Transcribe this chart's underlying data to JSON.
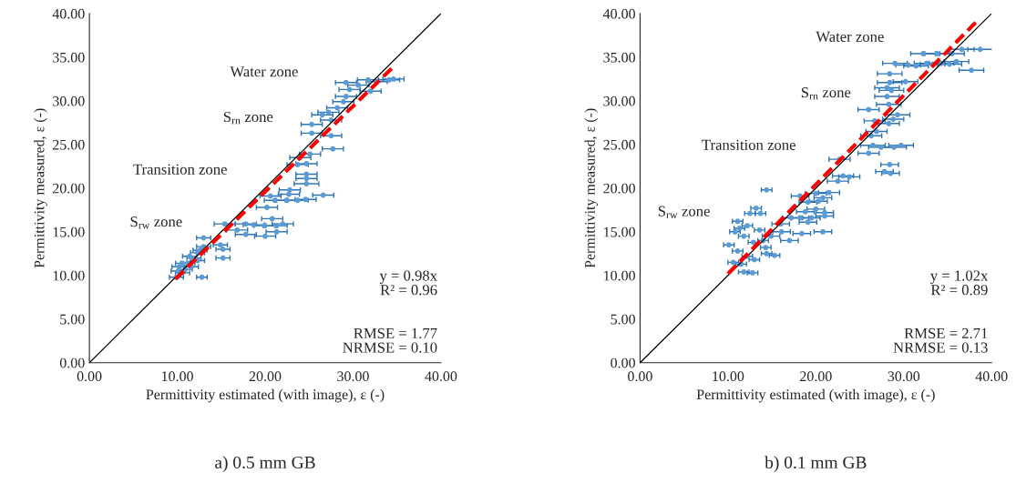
{
  "chart_data": [
    {
      "type": "scatter",
      "title": "a) 0.5 mm GB",
      "xlabel": "Permittivity estimated (with image), ε (-)",
      "ylabel": "Permittivity measured, ε (-)",
      "xlim": [
        0,
        40
      ],
      "ylim": [
        0,
        40
      ],
      "xticks": [
        {
          "value": 0,
          "label": "0.00"
        },
        {
          "value": 10,
          "label": "10.00"
        },
        {
          "value": 20,
          "label": "20.00"
        },
        {
          "value": 30,
          "label": "30.00"
        },
        {
          "value": 40,
          "label": "40.00"
        }
      ],
      "yticks": [
        {
          "value": 0,
          "label": "0.00"
        },
        {
          "value": 5,
          "label": "5.00"
        },
        {
          "value": 10,
          "label": "10.00"
        },
        {
          "value": 15,
          "label": "15.00"
        },
        {
          "value": 20,
          "label": "20.00"
        },
        {
          "value": 25,
          "label": "25.00"
        },
        {
          "value": 30,
          "label": "30.00"
        },
        {
          "value": 35,
          "label": "35.00"
        },
        {
          "value": 40,
          "label": "40.00"
        }
      ],
      "grid": false,
      "legend": false,
      "series": [
        {
          "marker": "circle",
          "color": "#5b9bd5",
          "x": [
            29.2,
            30.6,
            31.7,
            32.7,
            34.1,
            34.6,
            29.6,
            32.0,
            29.2,
            28.9,
            28.2,
            27.2,
            26.5,
            27.5,
            25.3,
            25.3,
            27.5,
            27.7,
            25.1,
            24.0,
            24.7,
            23.7,
            24.7,
            24.7,
            24.7,
            26.6,
            22.8,
            22.7,
            23.7,
            24.6,
            22.5,
            21.1,
            20.6,
            20.2,
            20.8,
            22.0,
            21.3,
            19.9,
            18.7,
            17.8,
            15.4,
            16.8,
            17.8,
            20.0,
            21.3,
            13.0,
            14.9,
            15.2,
            15.2,
            12.8,
            9.9,
            10.6,
            10.2,
            11.2,
            11.9,
            12.6,
            13.0,
            10.9,
            11.6,
            12.3,
            10.1,
            10.6,
            11.4,
            12.3
          ],
          "values": [
            32.1,
            31.8,
            32.4,
            32.2,
            32.4,
            32.5,
            31.3,
            31.1,
            30.5,
            29.9,
            29.2,
            28.7,
            28.4,
            27.8,
            27.3,
            26.3,
            26.0,
            24.5,
            23.9,
            23.5,
            22.8,
            22.7,
            21.6,
            21.1,
            20.5,
            19.2,
            19.8,
            19.3,
            18.6,
            18.7,
            18.6,
            18.6,
            19.1,
            17.8,
            16.5,
            15.9,
            15.7,
            15.7,
            15.8,
            15.9,
            15.9,
            15.2,
            14.7,
            14.5,
            15.0,
            14.3,
            13.5,
            13.0,
            12.0,
            9.8,
            9.8,
            10.3,
            11.0,
            11.4,
            12.0,
            12.9,
            13.3,
            10.7,
            11.0,
            11.7,
            10.5,
            11.4,
            12.2,
            12.6
          ],
          "xerrors": [
            1.2,
            1.2,
            1.2,
            1.2,
            1.2,
            1.2,
            1.2,
            1.2,
            1.2,
            1.2,
            1.2,
            1.2,
            1.2,
            1.2,
            1.2,
            1.2,
            1.2,
            1.2,
            1.2,
            1.2,
            1.2,
            1.2,
            1.2,
            1.2,
            1.4,
            1.2,
            1.2,
            1.2,
            1.2,
            1.2,
            1.2,
            1.2,
            1.2,
            1.2,
            1.2,
            1.2,
            1.2,
            1.2,
            1.2,
            1.2,
            1.2,
            1.2,
            1.2,
            1.2,
            1.2,
            0.8,
            0.8,
            0.8,
            0.8,
            0.6,
            0.8,
            0.8,
            0.8,
            0.8,
            0.8,
            0.8,
            0.8,
            0.8,
            0.8,
            0.8,
            0.8,
            0.8,
            0.8,
            0.8
          ]
        },
        {
          "type": "line",
          "color": "#000000",
          "line_style": "solid",
          "x": [
            0,
            40
          ],
          "values": [
            0,
            40
          ]
        },
        {
          "type": "line",
          "color": "#ff0000",
          "line_style": "dashed",
          "x": [
            9.8,
            34.8
          ],
          "values": [
            9.6,
            34.1
          ]
        }
      ],
      "annotations": [
        "Water zone",
        "S$_{rn}$ zone",
        "Transition zone",
        "S$_{rw}$ zone",
        "y = 0.98x\nR² = 0.96",
        "RMSE = 1.77\nNRMSE = 0.10"
      ]
    },
    {
      "type": "scatter",
      "title": "b) 0.1 mm GB",
      "xlabel": "Permittivity estimated (with image), ε (-)",
      "ylabel": "Permittivity measured, ε (-)",
      "xlim": [
        0,
        40
      ],
      "ylim": [
        0,
        40
      ],
      "xticks": [
        {
          "value": 0,
          "label": "0.00"
        },
        {
          "value": 10,
          "label": "10.00"
        },
        {
          "value": 20,
          "label": "20.00"
        },
        {
          "value": 30,
          "label": "30.00"
        },
        {
          "value": 40,
          "label": "40.00"
        }
      ],
      "yticks": [
        {
          "value": 0,
          "label": "0.00"
        },
        {
          "value": 5,
          "label": "5.00"
        },
        {
          "value": 10,
          "label": "10.00"
        },
        {
          "value": 15,
          "label": "15.00"
        },
        {
          "value": 20,
          "label": "20.00"
        },
        {
          "value": 25,
          "label": "25.00"
        },
        {
          "value": 30,
          "label": "30.00"
        },
        {
          "value": 35,
          "label": "35.00"
        },
        {
          "value": 40,
          "label": "40.00"
        }
      ],
      "grid": false,
      "legend": false,
      "series": [
        {
          "marker": "circle",
          "color": "#5b9bd5",
          "x": [
            38.7,
            37.7,
            36.6,
            35.5,
            33.8,
            32.2,
            29.0,
            30.5,
            31.4,
            32.6,
            33.3,
            34.3,
            35.2,
            36.0,
            28.4,
            28.4,
            30.2,
            28.1,
            28.6,
            28.1,
            28.3,
            26.0,
            29.3,
            28.8,
            28.3,
            26.7,
            26.9,
            26.3,
            26.5,
            29.7,
            28.9,
            27.4,
            26.0,
            22.7,
            28.4,
            27.8,
            28.5,
            23.1,
            23.8,
            22.5,
            21.5,
            20.0,
            18.2,
            20.8,
            20.3,
            19.1,
            20.0,
            21.0,
            18.8,
            21.0,
            19.5,
            18.2,
            17.2,
            19.1,
            16.0,
            20.8,
            18.4,
            17.0,
            16.1,
            14.9,
            14.4,
            13.2,
            12.5,
            13.7,
            11.1,
            12.2,
            10.8,
            11.8,
            12.9,
            14.0,
            10.1,
            14.3,
            11.1,
            12.2,
            13.0,
            14.4,
            15.3,
            10.6,
            11.5,
            11.8,
            12.8,
            13.6,
            11.3
          ],
          "values": [
            35.9,
            33.5,
            35.9,
            35.4,
            35.4,
            35.4,
            34.3,
            34.1,
            34.0,
            34.3,
            34.2,
            34.3,
            34.2,
            34.5,
            33.1,
            32.1,
            32.2,
            31.5,
            31.2,
            30.5,
            29.6,
            29.0,
            28.4,
            27.9,
            27.4,
            27.7,
            26.5,
            26.0,
            24.9,
            24.9,
            24.7,
            24.7,
            24.0,
            23.3,
            22.7,
            21.9,
            21.7,
            21.4,
            21.3,
            20.8,
            19.5,
            19.4,
            19.1,
            18.9,
            18.5,
            18.4,
            17.6,
            17.2,
            17.3,
            16.8,
            16.6,
            16.6,
            16.6,
            16.1,
            15.9,
            15.0,
            14.8,
            14.0,
            15.0,
            14.5,
            19.8,
            17.7,
            17.1,
            17.1,
            16.2,
            15.7,
            15.0,
            14.5,
            13.8,
            14.0,
            13.5,
            13.2,
            12.8,
            12.2,
            11.8,
            12.5,
            12.3,
            11.5,
            11.3,
            10.4,
            10.3,
            15.2,
            15.4
          ],
          "xerrors": [
            1.4,
            1.4,
            1.4,
            1.4,
            1.4,
            1.4,
            1.4,
            1.4,
            1.4,
            1.4,
            1.4,
            1.4,
            1.4,
            1.4,
            1.4,
            1.4,
            1.4,
            1.4,
            1.4,
            1.4,
            1.4,
            1.2,
            1.4,
            1.2,
            1.2,
            1.2,
            1.2,
            1.2,
            1.4,
            1.4,
            1.4,
            1.4,
            1.2,
            1.2,
            1.0,
            1.0,
            1.0,
            1.2,
            1.2,
            1.2,
            1.2,
            1.2,
            1.0,
            1.0,
            1.0,
            1.0,
            1.0,
            1.0,
            1.0,
            1.0,
            1.0,
            1.0,
            1.0,
            1.0,
            1.0,
            1.0,
            1.0,
            1.0,
            1.0,
            1.0,
            0.6,
            0.6,
            0.6,
            0.6,
            0.6,
            0.6,
            0.6,
            0.6,
            0.6,
            0.6,
            0.6,
            0.6,
            0.6,
            0.6,
            0.6,
            0.6,
            0.6,
            0.6,
            0.6,
            0.6,
            0.6,
            0.6,
            0.6
          ]
        },
        {
          "type": "line",
          "color": "#000000",
          "line_style": "solid",
          "x": [
            0,
            40
          ],
          "values": [
            0,
            40
          ]
        },
        {
          "type": "line",
          "color": "#ff0000",
          "line_style": "dashed",
          "x": [
            10.0,
            38.5
          ],
          "values": [
            10.2,
            39.3
          ]
        }
      ],
      "annotations": [
        "Water zone",
        "S$_{rn}$ zone",
        "Transition zone",
        "S$_{rw}$ zone",
        "y = 1.02x\nR² = 0.89",
        "RMSE = 2.71\nNRMSE = 0.13"
      ]
    }
  ]
}
